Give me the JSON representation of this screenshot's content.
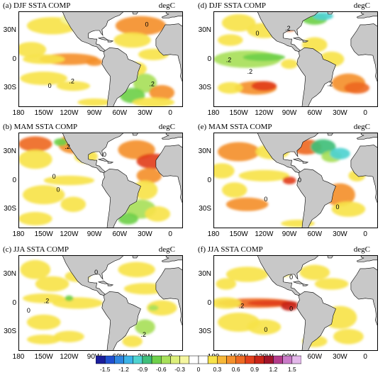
{
  "unit": "degC",
  "lat_labels": [
    "30N",
    "0",
    "30S"
  ],
  "lon_labels": [
    "180",
    "150W",
    "120W",
    "90W",
    "60W",
    "30W",
    "0"
  ],
  "panels": [
    {
      "id": "a",
      "title": "(a) DJF SSTA COMP",
      "contours": [
        "0",
        ".2",
        "0",
        ".2"
      ]
    },
    {
      "id": "b",
      "title": "(b) MAM SSTA COMP",
      "contours": [
        ".2",
        "0",
        "0",
        "0"
      ]
    },
    {
      "id": "c",
      "title": "(c) JJA SSTA COMP",
      "contours": [
        "0",
        ".2",
        ".2",
        "0"
      ]
    },
    {
      "id": "d",
      "title": "(d) DJF SSTA COMP",
      "contours": [
        "0",
        ".2",
        ".2",
        ".2",
        ".2"
      ]
    },
    {
      "id": "e",
      "title": "(e) MAM SSTA COMP",
      "contours": [
        "0",
        "0",
        "0"
      ]
    },
    {
      "id": "f",
      "title": "(f) JJA SSTA COMP",
      "contours": [
        "0",
        "0",
        ".2",
        "0"
      ]
    }
  ],
  "colorbar": {
    "labels": [
      "-1.5",
      "-1.2",
      "-0.9",
      "-0.6",
      "-0.3",
      "0",
      "0.3",
      "0.6",
      "0.9",
      "1.2",
      "1.5"
    ],
    "colors": [
      "#1b1e9c",
      "#2150d0",
      "#2f86e0",
      "#3cb4e8",
      "#4fd3d0",
      "#3fbf7a",
      "#6fd04a",
      "#a8e05a",
      "#dcef7a",
      "#f5f6a0",
      "#ffffff",
      "#ffffff",
      "#f7e34a",
      "#f7b838",
      "#f4902c",
      "#ee6a22",
      "#e2401c",
      "#c82418",
      "#a0142a",
      "#b43c8c",
      "#c97ac8",
      "#e3b8ea"
    ]
  }
}
